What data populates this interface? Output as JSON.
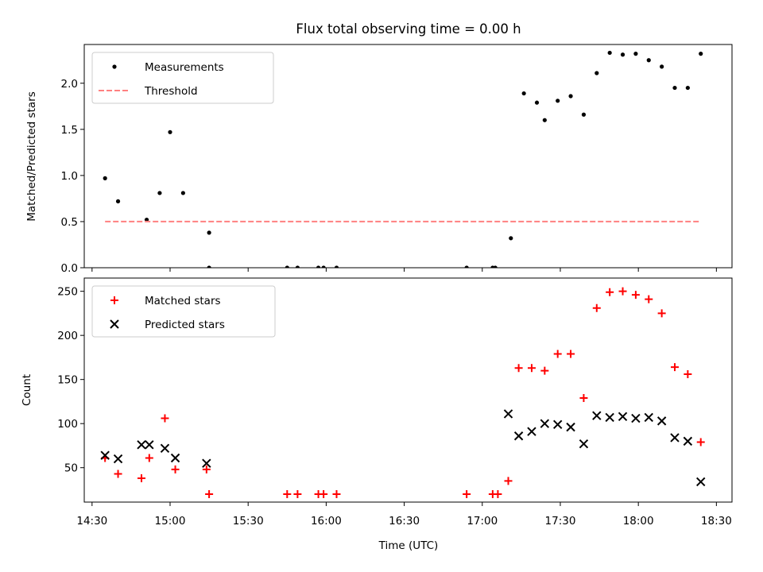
{
  "chart_data": [
    {
      "type": "scatter",
      "title": "Flux total observing time = 0.00 h",
      "xlabel": "",
      "ylabel": "Matched/Predicted stars",
      "ylim": [
        0,
        2.42
      ],
      "yticks": [
        "0.0",
        "0.5",
        "1.0",
        "1.5",
        "2.0"
      ],
      "ytick_values": [
        0,
        0.5,
        1.0,
        1.5,
        2.0
      ],
      "legend_position": "top-left",
      "series": [
        {
          "name": "Measurements",
          "kind": "dot",
          "color": "#000000",
          "x": [
            "14:35",
            "14:40",
            "14:51",
            "14:56",
            "15:00",
            "15:05",
            "15:15",
            "15:15",
            "15:45",
            "15:49",
            "15:57",
            "15:59",
            "16:04",
            "16:54",
            "17:04",
            "17:05",
            "17:11",
            "17:16",
            "17:21",
            "17:24",
            "17:29",
            "17:34",
            "17:39",
            "17:44",
            "17:49",
            "17:54",
            "17:59",
            "18:04",
            "18:09",
            "18:14",
            "18:19",
            "18:24"
          ],
          "y": [
            0.97,
            0.72,
            0.52,
            0.81,
            1.47,
            0.81,
            0.38,
            0.0,
            0.0,
            0.0,
            0.0,
            0.0,
            0.0,
            0.0,
            0.0,
            0.0,
            0.32,
            1.89,
            1.79,
            1.6,
            1.81,
            1.86,
            1.66,
            2.11,
            2.33,
            2.31,
            2.32,
            2.25,
            2.18,
            1.95,
            1.95,
            2.32
          ]
        },
        {
          "name": "Threshold",
          "kind": "dashed-line",
          "color": "#ff8080",
          "x": [
            "14:35",
            "18:24"
          ],
          "y": [
            0.5,
            0.5
          ]
        }
      ]
    },
    {
      "type": "scatter",
      "title": "",
      "xlabel": "Time (UTC)",
      "ylabel": "Count",
      "ylim": [
        11,
        265
      ],
      "yticks": [
        "50",
        "100",
        "150",
        "200",
        "250"
      ],
      "ytick_values": [
        50,
        100,
        150,
        200,
        250
      ],
      "xlim": [
        "14:27",
        "18:36"
      ],
      "xticks": [
        "14:30",
        "15:00",
        "15:30",
        "16:00",
        "16:30",
        "17:00",
        "17:30",
        "18:00",
        "18:30"
      ],
      "legend_position": "top-left",
      "series": [
        {
          "name": "Matched stars",
          "kind": "plus",
          "color": "#ff0000",
          "x": [
            "14:35",
            "14:40",
            "14:49",
            "14:52",
            "14:58",
            "15:02",
            "15:14",
            "15:15",
            "15:45",
            "15:49",
            "15:57",
            "15:59",
            "16:04",
            "16:54",
            "17:04",
            "17:06",
            "17:10",
            "17:14",
            "17:19",
            "17:24",
            "17:29",
            "17:34",
            "17:39",
            "17:44",
            "17:49",
            "17:54",
            "17:59",
            "18:04",
            "18:09",
            "18:14",
            "18:19",
            "18:24"
          ],
          "y": [
            61,
            43,
            38,
            61,
            106,
            48,
            48,
            20,
            20,
            20,
            20,
            20,
            20,
            20,
            20,
            20,
            35,
            163,
            163,
            160,
            179,
            179,
            129,
            231,
            249,
            250,
            246,
            241,
            225,
            164,
            156,
            79
          ]
        },
        {
          "name": "Predicted stars",
          "kind": "x",
          "color": "#000000",
          "x": [
            "14:35",
            "14:40",
            "14:49",
            "14:52",
            "14:58",
            "15:02",
            "15:14",
            "17:10",
            "17:14",
            "17:19",
            "17:24",
            "17:29",
            "17:34",
            "17:39",
            "17:44",
            "17:49",
            "17:54",
            "17:59",
            "18:04",
            "18:09",
            "18:14",
            "18:19",
            "18:24"
          ],
          "y": [
            64,
            60,
            76,
            76,
            72,
            61,
            55,
            111,
            86,
            91,
            100,
            99,
            96,
            77,
            109,
            107,
            108,
            106,
            107,
            103,
            84,
            80,
            34
          ]
        }
      ]
    }
  ]
}
